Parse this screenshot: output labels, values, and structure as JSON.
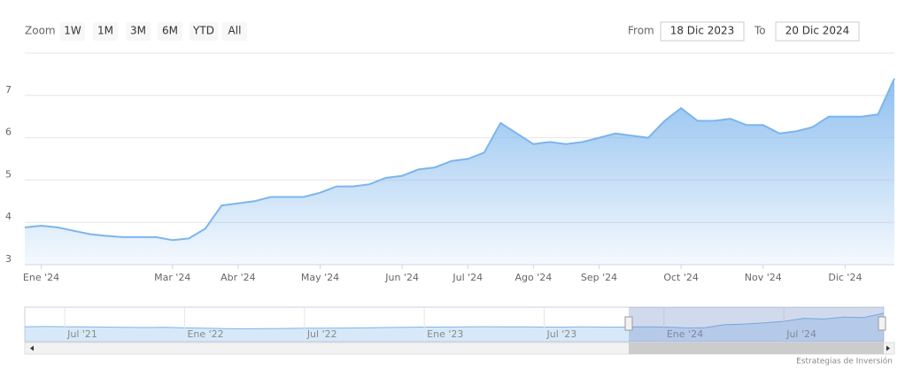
{
  "controls": {
    "zoom_label": "Zoom",
    "buttons": [
      "1W",
      "1M",
      "3M",
      "6M",
      "YTD",
      "All"
    ],
    "from_label": "From",
    "from_value": "18 Dic 2023",
    "to_label": "To",
    "to_value": "20 Dic 2024"
  },
  "credit": "Estrategias de Inversión",
  "chart_data": [
    {
      "type": "area",
      "color": "#7cb5ec",
      "categories": [
        null,
        "Ene '24",
        null,
        null,
        null,
        null,
        null,
        null,
        null,
        "Mar '24",
        null,
        null,
        null,
        "Abr '24",
        null,
        null,
        null,
        null,
        "May '24",
        null,
        null,
        null,
        null,
        "Jun '24",
        null,
        null,
        null,
        "Jul '24",
        null,
        null,
        null,
        "Ago '24",
        null,
        null,
        null,
        "Sep '24",
        null,
        null,
        null,
        null,
        "Oct '24",
        null,
        null,
        null,
        null,
        "Nov '24",
        null,
        null,
        null,
        null,
        "Dic '24",
        null,
        null,
        null
      ],
      "values": [
        3.88,
        3.92,
        3.88,
        3.8,
        3.72,
        3.68,
        3.65,
        3.65,
        3.65,
        3.58,
        3.62,
        3.85,
        4.4,
        4.45,
        4.5,
        4.6,
        4.6,
        4.6,
        4.7,
        4.85,
        4.85,
        4.9,
        5.05,
        5.1,
        5.25,
        5.3,
        5.45,
        5.5,
        5.65,
        6.35,
        6.1,
        5.85,
        5.9,
        5.85,
        5.9,
        6.0,
        6.1,
        6.05,
        6.0,
        6.4,
        6.7,
        6.4,
        6.4,
        6.45,
        6.3,
        6.3,
        6.1,
        6.15,
        6.25,
        6.5,
        6.5,
        6.5,
        6.55,
        7.4
      ],
      "ylim": [
        3,
        8
      ],
      "yticks": [
        3,
        4,
        5,
        6,
        7
      ],
      "grid": true
    },
    {
      "type": "area",
      "color": "#7cb5ec",
      "categories": [
        null,
        null,
        "Jul '21",
        null,
        null,
        null,
        null,
        null,
        "Ene '22",
        null,
        null,
        null,
        null,
        null,
        "Jul '22",
        null,
        null,
        null,
        null,
        null,
        "Ene '23",
        null,
        null,
        null,
        null,
        null,
        "Jul '23",
        null,
        null,
        null,
        null,
        null,
        "Ene '24",
        null,
        null,
        null,
        null,
        null,
        "Jul '24",
        null,
        null,
        null,
        null,
        null
      ],
      "values": [
        3.9,
        3.95,
        3.9,
        3.85,
        3.8,
        3.75,
        3.7,
        3.75,
        3.6,
        3.5,
        3.4,
        3.35,
        3.4,
        3.45,
        3.5,
        3.5,
        3.55,
        3.6,
        3.7,
        3.75,
        3.8,
        3.8,
        3.85,
        3.9,
        3.85,
        3.85,
        3.8,
        3.8,
        3.85,
        3.8,
        3.8,
        3.85,
        3.8,
        3.65,
        3.6,
        4.4,
        4.6,
        4.9,
        5.3,
        6.1,
        5.9,
        6.4,
        6.3,
        7.4
      ],
      "ylim": [
        0,
        9
      ]
    }
  ]
}
